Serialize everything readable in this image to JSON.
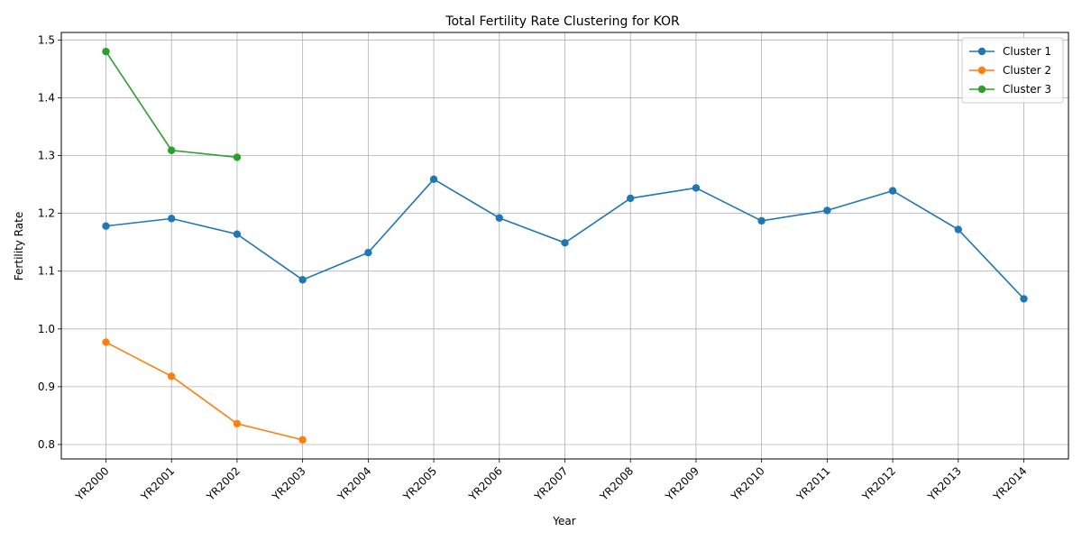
{
  "chart_data": {
    "type": "line",
    "title": "Total Fertility Rate Clustering for KOR",
    "xlabel": "Year",
    "ylabel": "Fertility Rate",
    "categories": [
      "YR2000",
      "YR2001",
      "YR2002",
      "YR2003",
      "YR2004",
      "YR2005",
      "YR2006",
      "YR2007",
      "YR2008",
      "YR2009",
      "YR2010",
      "YR2011",
      "YR2012",
      "YR2013",
      "YR2014"
    ],
    "yticks": [
      "0.8",
      "0.9",
      "1.0",
      "1.1",
      "1.2",
      "1.3",
      "1.4",
      "1.5"
    ],
    "ylim": [
      0.775,
      1.513
    ],
    "grid": true,
    "legend_position": "top-right",
    "series": [
      {
        "name": "Cluster 1",
        "color": "#1f77b4",
        "points": [
          {
            "x": "YR2000",
            "y": 1.178
          },
          {
            "x": "YR2001",
            "y": 1.191
          },
          {
            "x": "YR2002",
            "y": 1.164
          },
          {
            "x": "YR2003",
            "y": 1.085
          },
          {
            "x": "YR2004",
            "y": 1.132
          },
          {
            "x": "YR2005",
            "y": 1.259
          },
          {
            "x": "YR2006",
            "y": 1.192
          },
          {
            "x": "YR2007",
            "y": 1.149
          },
          {
            "x": "YR2008",
            "y": 1.226
          },
          {
            "x": "YR2009",
            "y": 1.244
          },
          {
            "x": "YR2010",
            "y": 1.187
          },
          {
            "x": "YR2011",
            "y": 1.205
          },
          {
            "x": "YR2012",
            "y": 1.239
          },
          {
            "x": "YR2013",
            "y": 1.172
          },
          {
            "x": "YR2014",
            "y": 1.052
          }
        ]
      },
      {
        "name": "Cluster 2",
        "color": "#ff7f0e",
        "points": [
          {
            "x": "YR2000",
            "y": 0.977
          },
          {
            "x": "YR2001",
            "y": 0.918
          },
          {
            "x": "YR2002",
            "y": 0.836
          },
          {
            "x": "YR2003",
            "y": 0.808
          }
        ]
      },
      {
        "name": "Cluster 3",
        "color": "#2ca02c",
        "points": [
          {
            "x": "YR2000",
            "y": 1.48
          },
          {
            "x": "YR2001",
            "y": 1.309
          },
          {
            "x": "YR2002",
            "y": 1.297
          }
        ]
      }
    ]
  }
}
